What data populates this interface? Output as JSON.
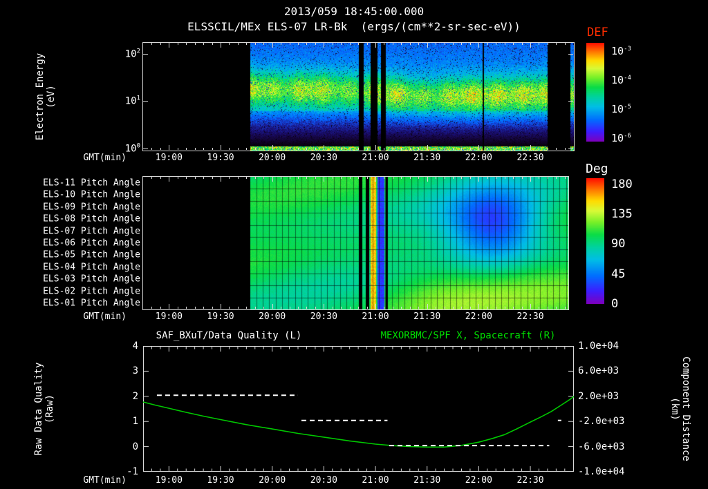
{
  "header": {
    "timestamp": "2013/059 18:45:00.000",
    "subtitle": "ELSSCIL/MEx ELS-07 LR-Bk  (ergs/(cm**2-sr-sec-eV))"
  },
  "colors": {
    "background": "#000000",
    "text": "#ffffff",
    "axis": "#d8d8d8",
    "def_title": "#ff2d00",
    "right_title": "#00e000",
    "curve": "#00c800",
    "quality_dash": "#ffffff",
    "colormap": [
      [
        0.0,
        [
          125,
          0,
          190
        ]
      ],
      [
        0.1,
        [
          60,
          30,
          255
        ]
      ],
      [
        0.22,
        [
          0,
          110,
          255
        ]
      ],
      [
        0.35,
        [
          0,
          190,
          230
        ]
      ],
      [
        0.45,
        [
          0,
          210,
          160
        ]
      ],
      [
        0.55,
        [
          10,
          220,
          70
        ]
      ],
      [
        0.65,
        [
          120,
          240,
          40
        ]
      ],
      [
        0.74,
        [
          215,
          250,
          55
        ]
      ],
      [
        0.82,
        [
          255,
          220,
          0
        ]
      ],
      [
        0.91,
        [
          255,
          120,
          0
        ]
      ],
      [
        1.0,
        [
          255,
          15,
          0
        ]
      ]
    ]
  },
  "time_axis": {
    "label": "GMT(min)",
    "start_label": "18:45",
    "ticks": [
      "19:00",
      "19:30",
      "20:00",
      "20:30",
      "21:00",
      "21:30",
      "22:00",
      "22:30"
    ],
    "tick_minutes": [
      1140,
      1170,
      1200,
      1230,
      1260,
      1290,
      1320,
      1350
    ]
  },
  "panels": {
    "spectrogram": {
      "ylabel1": "Electron Energy",
      "ylabel2": "(eV)",
      "yticks": [
        {
          "base": "10",
          "exp": "2"
        },
        {
          "base": "10",
          "exp": "1"
        },
        {
          "base": "10",
          "exp": "0"
        }
      ],
      "colorbar": {
        "title": "DEF",
        "ticks": [
          {
            "base": "10",
            "exp": "-3"
          },
          {
            "base": "10",
            "exp": "-4"
          },
          {
            "base": "10",
            "exp": "-5"
          },
          {
            "base": "10",
            "exp": "-6"
          }
        ]
      }
    },
    "pitch": {
      "row_labels": [
        "ELS-11 Pitch Angle",
        "ELS-10 Pitch Angle",
        "ELS-09 Pitch Angle",
        "ELS-08 Pitch Angle",
        "ELS-07 Pitch Angle",
        "ELS-06 Pitch Angle",
        "ELS-05 Pitch Angle",
        "ELS-04 Pitch Angle",
        "ELS-03 Pitch Angle",
        "ELS-02 Pitch Angle",
        "ELS-01 Pitch Angle"
      ],
      "colorbar": {
        "title": "Deg",
        "ticks": [
          "180",
          "135",
          "90",
          "45",
          "0"
        ]
      }
    },
    "timeseries": {
      "left_title": "SAF_BXuT/Data Quality (L)",
      "right_title": "MEXORBMC/SPF X, Spacecraft (R)",
      "left_ylabel1": "Raw Data Quality",
      "left_ylabel2": "(Raw)",
      "right_ylabel1": "Component Distance",
      "right_ylabel2": "(km)",
      "left_ticks": [
        "4",
        "3",
        "2",
        "1",
        "0",
        "-1"
      ],
      "left_tick_values": [
        4,
        3,
        2,
        1,
        0,
        -1
      ],
      "right_ticks": [
        "1.0e+04",
        "6.0e+03",
        "2.0e+03",
        "-2.0e+03",
        "-6.0e+03",
        "-1.0e+04"
      ],
      "right_tick_values": [
        10000,
        6000,
        2000,
        -2000,
        -6000,
        -10000
      ]
    }
  },
  "chart_data": [
    {
      "type": "heatmap",
      "name": "electron-energy-spectrogram",
      "title": "ELSSCIL/MEx ELS-07 LR-Bk",
      "units": "ergs/(cm**2-sr-sec-eV)",
      "x_range_gmt": [
        "18:45",
        "22:55"
      ],
      "y_axis": "Electron Energy (eV)",
      "y_scale": "log",
      "y_range_ev": [
        1,
        170
      ],
      "color_scale": "log",
      "color_range_def": [
        1e-06,
        0.001
      ],
      "data_start_gmt": "19:47",
      "description": "Bright electron flux band between ~8 and ~40 eV (DEF ~1e-4, green/yellow) over blue background (~1e-5); band center drifts from ~18 eV down to ~13 eV after 21:10; brightest around 22:05-22:30; thin intense green line in lowest energy bin; black data-gap columns near 20:50-21:06, 22:02 and 22:40-22:53.",
      "band_center_keypoints_log10_minutes_after_1845": [
        [
          62,
          1.27
        ],
        [
          120,
          1.23
        ],
        [
          140,
          1.17
        ],
        [
          160,
          1.1
        ],
        [
          185,
          1.12
        ],
        [
          210,
          1.13
        ],
        [
          251,
          1.16
        ]
      ],
      "gaps_gmt": [
        [
          "20:50",
          "20:53"
        ],
        [
          "20:57",
          "21:01"
        ],
        [
          "21:03",
          "21:06"
        ],
        [
          "22:02",
          "22:03"
        ],
        [
          "22:40",
          "22:53"
        ]
      ],
      "seed": 7
    },
    {
      "type": "heatmap",
      "name": "pitch-angle-panel",
      "rows": [
        "ELS-11",
        "ELS-10",
        "ELS-09",
        "ELS-08",
        "ELS-07",
        "ELS-06",
        "ELS-05",
        "ELS-04",
        "ELS-03",
        "ELS-02",
        "ELS-01"
      ],
      "value_units": "degrees",
      "value_range": [
        0,
        180
      ],
      "data_start_gmt": "19:47",
      "description": "Pitch angle ~90-100 deg (green) across most rows with cyan patches; deep blue depression (~25-45 deg) centered ~22:09 on rows ELS-09..ELS-05; yellow-green (~115 deg) on lower rows ELS-02/ELS-01 after ~21:15; narrow vertical stripes near 21:00 (black, ~150 deg yellow, ~25 deg blue); dark grid overlay.",
      "base_deg": 93,
      "blob": {
        "center_gmt": "22:09",
        "center_row": 4,
        "sigma_min": 20,
        "sigma_rows": 2.3,
        "depth_deg": 68
      },
      "bottom_right": {
        "gain_deg": 22,
        "onset_gmt": "21:15"
      },
      "stripes": [
        {
          "from": "20:50",
          "to": "20:52",
          "value_deg": null
        },
        {
          "from": "20:54",
          "to": "20:56",
          "value_deg": null
        },
        {
          "from": "20:57",
          "to": "21:00",
          "value_deg": 150
        },
        {
          "from": "21:01",
          "to": "21:05",
          "value_deg": 25
        },
        {
          "from": "21:06",
          "to": "21:07",
          "value_deg": null
        }
      ],
      "grid_minutes": 3.75,
      "seed": 11
    },
    {
      "type": "line",
      "name": "quality-and-distance",
      "x_axis": "GMT(min)",
      "left_axis": {
        "label": "Raw Data Quality (Raw)",
        "range": [
          -1,
          4
        ]
      },
      "right_axis": {
        "label": "Component Distance (km)",
        "range": [
          -10000,
          10000
        ]
      },
      "series": [
        {
          "name": "MEXORBMC/SPF X, Spacecraft (R)",
          "axis": "right",
          "color": "#00c800",
          "style": "solid",
          "x_gmt": [
            "18:45",
            "18:52",
            "19:00",
            "19:10",
            "19:20",
            "19:30",
            "19:45",
            "20:00",
            "20:15",
            "20:30",
            "20:45",
            "21:00",
            "21:10",
            "21:20",
            "21:30",
            "21:40",
            "21:50",
            "22:00",
            "22:08",
            "22:15",
            "22:22",
            "22:30",
            "22:36",
            "22:42",
            "22:48",
            "22:53",
            "22:56"
          ],
          "y_km": [
            1100,
            600,
            100,
            -550,
            -1150,
            -1700,
            -2500,
            -3200,
            -3900,
            -4500,
            -5100,
            -5600,
            -5850,
            -6000,
            -6080,
            -6080,
            -5800,
            -5300,
            -4700,
            -4100,
            -3200,
            -2100,
            -1300,
            -450,
            600,
            1500,
            2100
          ]
        },
        {
          "name": "SAF_BXuT/Data Quality (L)",
          "axis": "left",
          "color": "#ffffff",
          "style": "dashed",
          "segments": [
            {
              "value": 2,
              "from": "18:53",
              "to": "20:15"
            },
            {
              "value": 1,
              "from": "20:17",
              "to": "21:07"
            },
            {
              "value": 0,
              "from": "21:08",
              "to": "22:41"
            },
            {
              "value": 1,
              "from": "22:46",
              "to": "22:48"
            }
          ]
        }
      ]
    }
  ]
}
